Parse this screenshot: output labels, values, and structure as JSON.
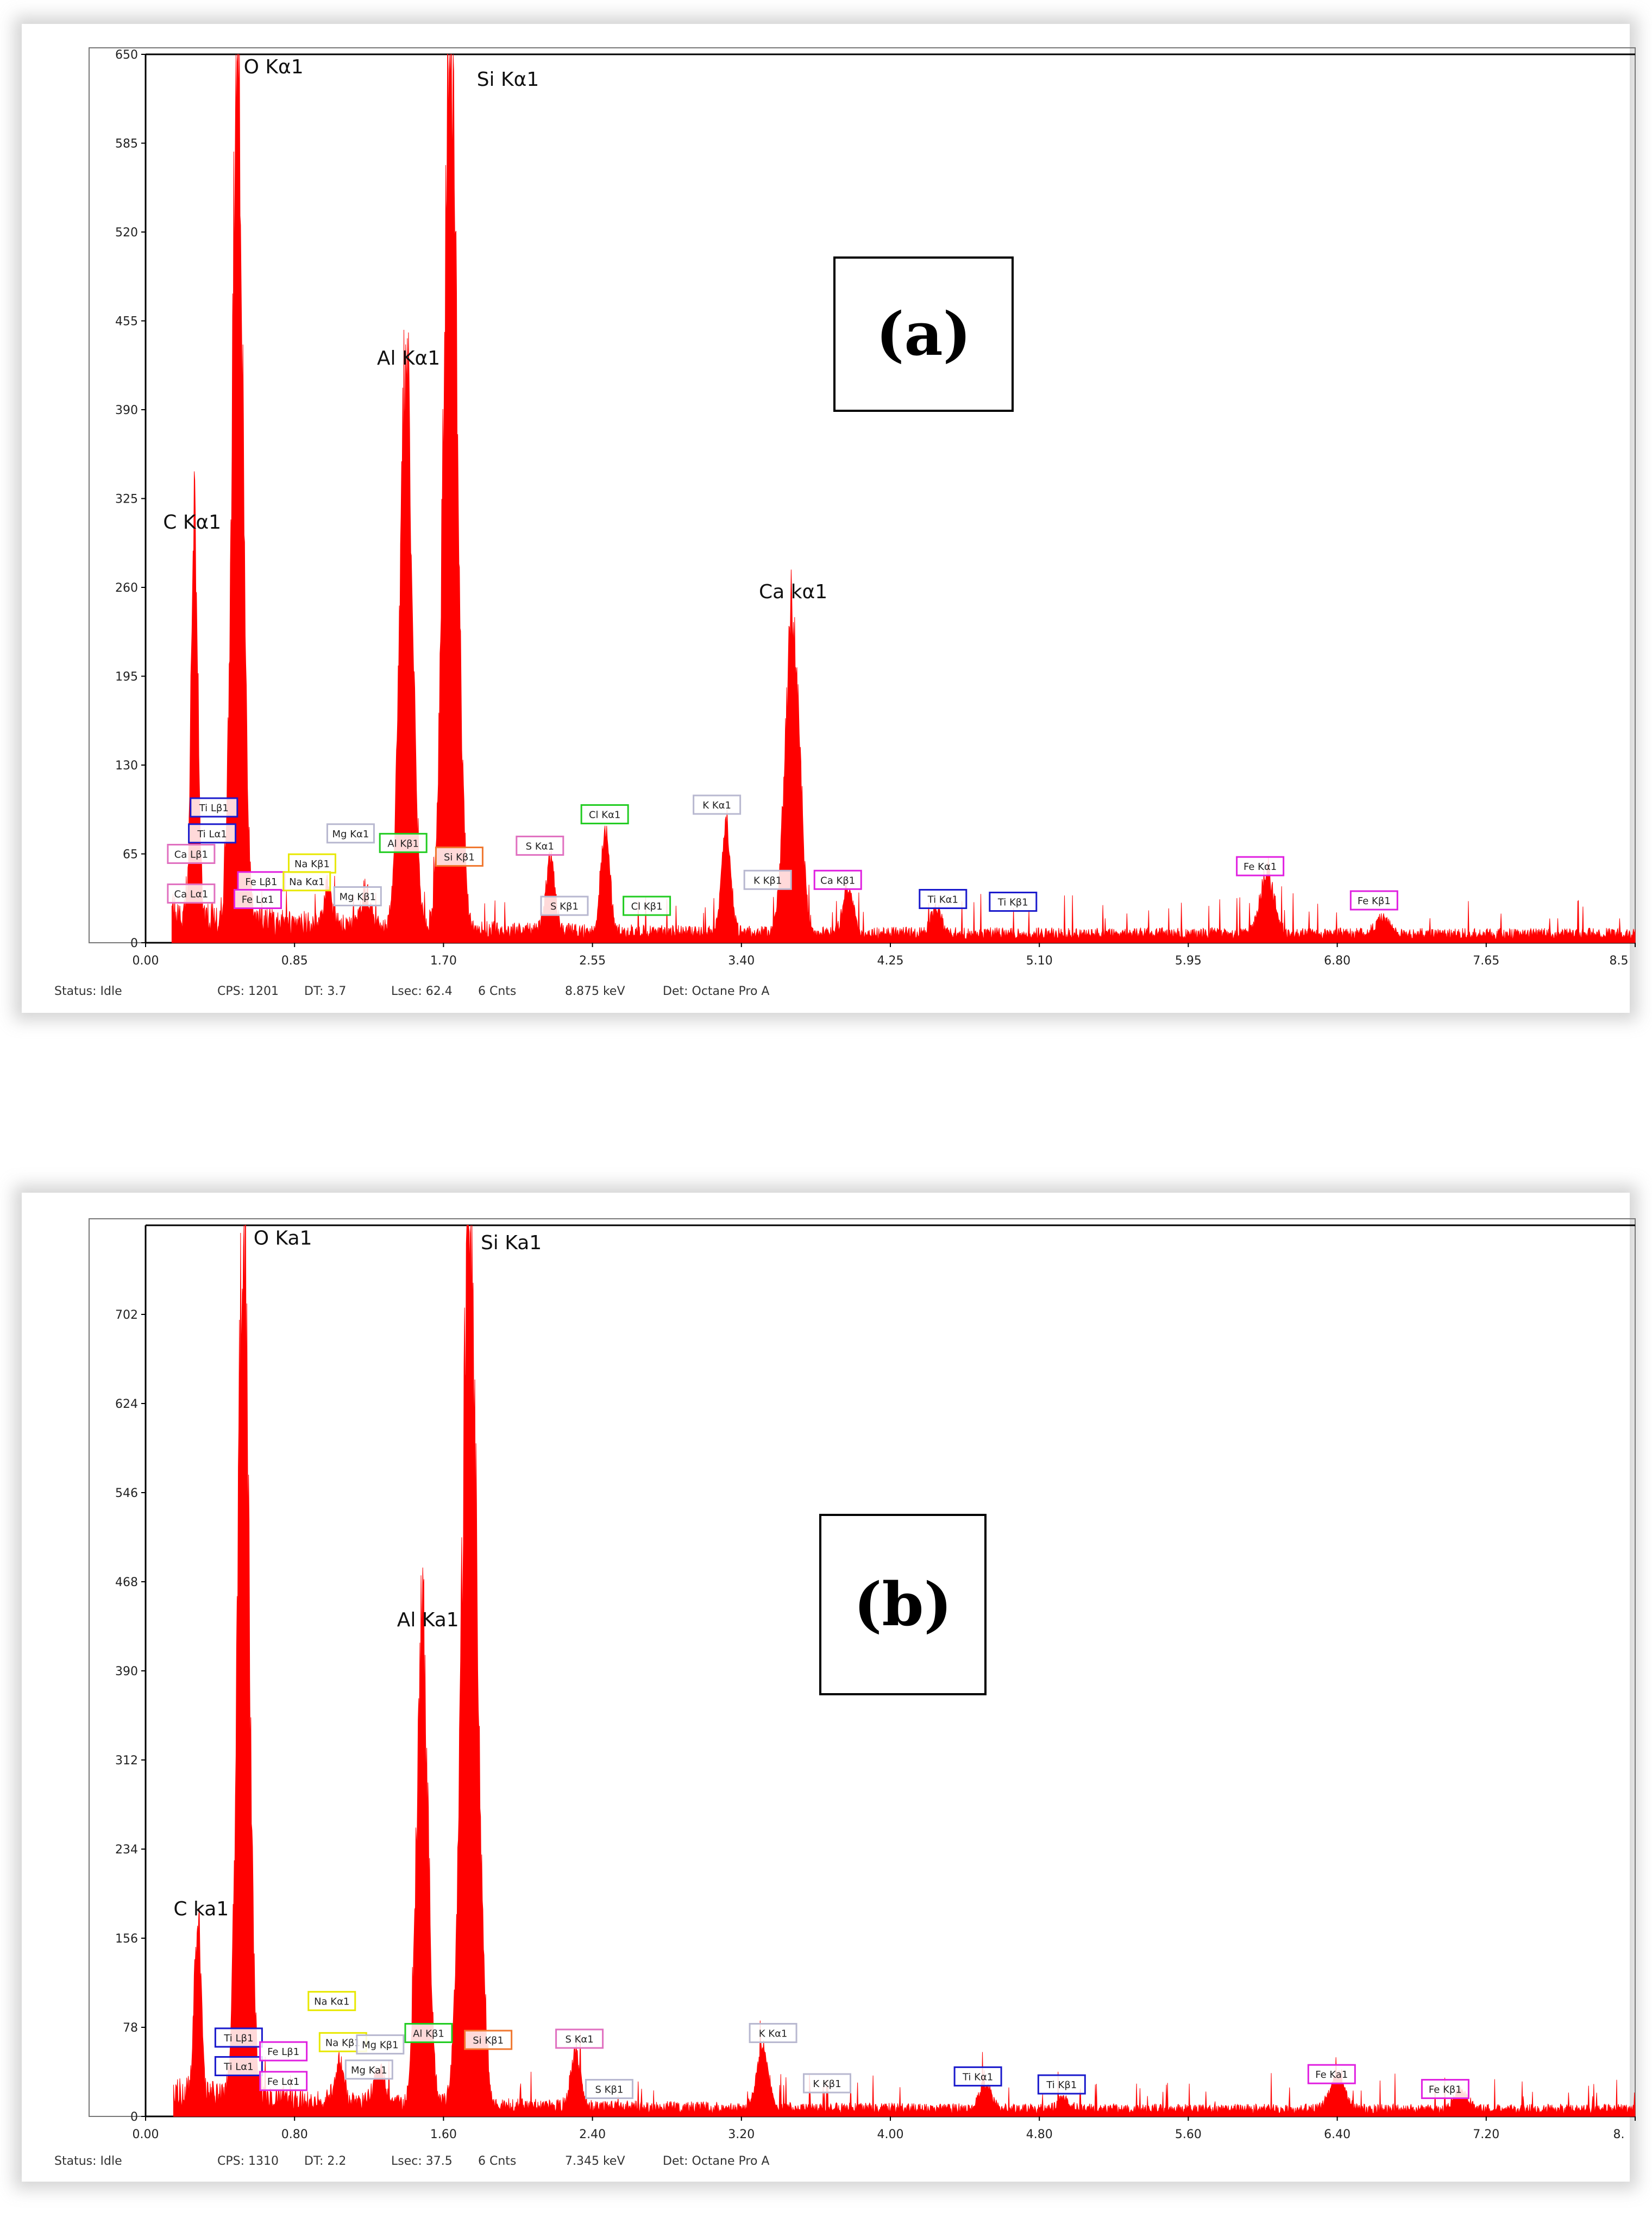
{
  "panels": [
    {
      "id": "a",
      "panel_label": "(a)",
      "status": {
        "status": "Status: Idle",
        "cps": "CPS: 1201",
        "dt": "DT: 3.7",
        "lsec": "Lsec: 62.4",
        "cnts": "6 Cnts",
        "kev": "8.875 keV",
        "det": "Det: Octane Pro A"
      }
    },
    {
      "id": "b",
      "panel_label": "(b)",
      "status": {
        "status": "Status: Idle",
        "cps": "CPS: 1310",
        "dt": "DT: 2.2",
        "lsec": "Lsec: 37.5",
        "cnts": "6 Cnts",
        "kev": "7.345 keV",
        "det": "Det: Octane Pro A"
      }
    }
  ],
  "colors": {
    "spectrum": "#ff0000",
    "axis": "#000000",
    "label_blue": "#1a1acc",
    "label_magenta": "#e020e0",
    "label_yellow": "#e8e800",
    "label_green": "#22cc22",
    "label_orange": "#f07830",
    "label_pink": "#e070c0",
    "label_gray": "#b8b8d0"
  },
  "chart_data": [
    {
      "type": "area",
      "xlim": [
        0,
        8.5
      ],
      "ylim": [
        0,
        650
      ],
      "x_ticks": [
        "0.00",
        "0.85",
        "1.70",
        "2.55",
        "3.40",
        "4.25",
        "5.10",
        "5.95",
        "6.80",
        "7.65",
        "8.5"
      ],
      "y_ticks": [
        "0",
        "65",
        "130",
        "195",
        "260",
        "325",
        "390",
        "455",
        "520",
        "585",
        "650"
      ],
      "baseline": 6,
      "peaks": [
        {
          "x": 0.28,
          "y": 297,
          "w": 0.018
        },
        {
          "x": 0.525,
          "y": 650,
          "w": 0.03
        },
        {
          "x": 1.04,
          "y": 30,
          "w": 0.02
        },
        {
          "x": 1.255,
          "y": 24,
          "w": 0.03
        },
        {
          "x": 1.487,
          "y": 418,
          "w": 0.035
        },
        {
          "x": 1.74,
          "y": 650,
          "w": 0.038
        },
        {
          "x": 2.31,
          "y": 52,
          "w": 0.025
        },
        {
          "x": 2.622,
          "y": 76,
          "w": 0.025
        },
        {
          "x": 3.313,
          "y": 80,
          "w": 0.025
        },
        {
          "x": 3.69,
          "y": 235,
          "w": 0.04
        },
        {
          "x": 4.01,
          "y": 34,
          "w": 0.03
        },
        {
          "x": 4.51,
          "y": 18,
          "w": 0.03
        },
        {
          "x": 6.4,
          "y": 44,
          "w": 0.04
        },
        {
          "x": 7.06,
          "y": 12,
          "w": 0.04
        }
      ],
      "main_labels": [
        {
          "text": "O Kα1",
          "x": 0.56,
          "y": 636
        },
        {
          "text": "Si Kα1",
          "x": 1.89,
          "y": 627
        },
        {
          "text": "Al Kα1",
          "x": 1.32,
          "y": 423
        },
        {
          "text": "C Kα1",
          "x": 0.1,
          "y": 303
        },
        {
          "text": "Ca kα1",
          "x": 3.5,
          "y": 252
        }
      ],
      "line_labels": [
        {
          "text": "Ti Lβ1",
          "x": 0.39,
          "y": 99,
          "color": "label_blue"
        },
        {
          "text": "Ti Lα1",
          "x": 0.38,
          "y": 80,
          "color": "label_blue"
        },
        {
          "text": "Ca Lβ1",
          "x": 0.26,
          "y": 65,
          "color": "label_pink"
        },
        {
          "text": "Ca Lα1",
          "x": 0.26,
          "y": 36,
          "color": "label_pink"
        },
        {
          "text": "Fe Lβ1",
          "x": 0.66,
          "y": 45,
          "color": "label_magenta"
        },
        {
          "text": "Fe Lα1",
          "x": 0.64,
          "y": 32,
          "color": "label_magenta"
        },
        {
          "text": "Na Kβ1",
          "x": 0.95,
          "y": 58,
          "color": "label_yellow"
        },
        {
          "text": "Na Kα1",
          "x": 0.92,
          "y": 45,
          "color": "label_yellow"
        },
        {
          "text": "Mg Kα1",
          "x": 1.17,
          "y": 80,
          "color": "label_gray"
        },
        {
          "text": "Mg Kβ1",
          "x": 1.21,
          "y": 34,
          "color": "label_gray"
        },
        {
          "text": "Al Kβ1",
          "x": 1.47,
          "y": 73,
          "color": "label_green"
        },
        {
          "text": "Si Kβ1",
          "x": 1.79,
          "y": 63,
          "color": "label_orange"
        },
        {
          "text": "S  Kα1",
          "x": 2.25,
          "y": 71,
          "color": "label_pink"
        },
        {
          "text": "S  Kβ1",
          "x": 2.39,
          "y": 27,
          "color": "label_gray"
        },
        {
          "text": "Cl Kα1",
          "x": 2.62,
          "y": 94,
          "color": "label_green"
        },
        {
          "text": "Cl Kβ1",
          "x": 2.86,
          "y": 27,
          "color": "label_green"
        },
        {
          "text": "K  Kα1",
          "x": 3.26,
          "y": 101,
          "color": "label_gray"
        },
        {
          "text": "K  Kβ1",
          "x": 3.55,
          "y": 46,
          "color": "label_gray"
        },
        {
          "text": "Ca Kβ1",
          "x": 3.95,
          "y": 46,
          "color": "label_magenta"
        },
        {
          "text": "Ti Kα1",
          "x": 4.55,
          "y": 32,
          "color": "label_blue"
        },
        {
          "text": "Ti Kβ1",
          "x": 4.95,
          "y": 30,
          "color": "label_blue"
        },
        {
          "text": "Fe Kα1",
          "x": 6.36,
          "y": 56,
          "color": "label_magenta"
        },
        {
          "text": "Fe Kβ1",
          "x": 7.01,
          "y": 31,
          "color": "label_magenta"
        }
      ]
    },
    {
      "type": "area",
      "xlim": [
        0,
        8.0
      ],
      "ylim": [
        0,
        780
      ],
      "x_ticks": [
        "0.00",
        "0.80",
        "1.60",
        "2.40",
        "3.20",
        "4.00",
        "4.80",
        "5.60",
        "6.40",
        "7.20",
        "8."
      ],
      "y_ticks": [
        "0",
        "78",
        "156",
        "234",
        "312",
        "390",
        "468",
        "546",
        "624",
        "702"
      ],
      "baseline": 6,
      "peaks": [
        {
          "x": 0.28,
          "y": 154,
          "w": 0.018
        },
        {
          "x": 0.525,
          "y": 780,
          "w": 0.03
        },
        {
          "x": 1.04,
          "y": 32,
          "w": 0.025
        },
        {
          "x": 1.255,
          "y": 28,
          "w": 0.03
        },
        {
          "x": 1.487,
          "y": 418,
          "w": 0.03
        },
        {
          "x": 1.74,
          "y": 775,
          "w": 0.04
        },
        {
          "x": 2.31,
          "y": 50,
          "w": 0.025
        },
        {
          "x": 3.313,
          "y": 55,
          "w": 0.03
        },
        {
          "x": 4.51,
          "y": 22,
          "w": 0.03
        },
        {
          "x": 4.93,
          "y": 10,
          "w": 0.03
        },
        {
          "x": 6.4,
          "y": 28,
          "w": 0.04
        },
        {
          "x": 7.06,
          "y": 14,
          "w": 0.04
        }
      ],
      "main_labels": [
        {
          "text": "O Ka1",
          "x": 0.58,
          "y": 763
        },
        {
          "text": "Si Ka1",
          "x": 1.8,
          "y": 759
        },
        {
          "text": "Al Ka1",
          "x": 1.35,
          "y": 429
        },
        {
          "text": "C ka1",
          "x": 0.15,
          "y": 176
        }
      ],
      "line_labels": [
        {
          "text": "Na Kα1",
          "x": 1.0,
          "y": 101,
          "color": "label_yellow"
        },
        {
          "text": "Ti Lβ1",
          "x": 0.5,
          "y": 69,
          "color": "label_blue"
        },
        {
          "text": "Ti Lα1",
          "x": 0.5,
          "y": 44,
          "color": "label_blue"
        },
        {
          "text": "Fe Lβ1",
          "x": 0.74,
          "y": 57,
          "color": "label_magenta"
        },
        {
          "text": "Fe Lα1",
          "x": 0.74,
          "y": 31,
          "color": "label_magenta"
        },
        {
          "text": "Na Kβ1",
          "x": 1.06,
          "y": 65,
          "color": "label_yellow"
        },
        {
          "text": "Mg Kβ1",
          "x": 1.26,
          "y": 63,
          "color": "label_gray"
        },
        {
          "text": "Mg Ka1",
          "x": 1.2,
          "y": 41,
          "color": "label_gray"
        },
        {
          "text": "Al Kβ1",
          "x": 1.52,
          "y": 73,
          "color": "label_green"
        },
        {
          "text": "Si Kβ1",
          "x": 1.84,
          "y": 67,
          "color": "label_orange"
        },
        {
          "text": "S  Kα1",
          "x": 2.33,
          "y": 68,
          "color": "label_pink"
        },
        {
          "text": "S  Kβ1",
          "x": 2.49,
          "y": 24,
          "color": "label_gray"
        },
        {
          "text": "K  Kα1",
          "x": 3.37,
          "y": 73,
          "color": "label_gray"
        },
        {
          "text": "K  Kβ1",
          "x": 3.66,
          "y": 29,
          "color": "label_gray"
        },
        {
          "text": "Ti Kα1",
          "x": 4.47,
          "y": 35,
          "color": "label_blue"
        },
        {
          "text": "Ti Kβ1",
          "x": 4.92,
          "y": 28,
          "color": "label_blue"
        },
        {
          "text": "Fe Ka1",
          "x": 6.37,
          "y": 37,
          "color": "label_magenta"
        },
        {
          "text": "Fe Kβ1",
          "x": 6.98,
          "y": 24,
          "color": "label_magenta"
        }
      ]
    }
  ]
}
